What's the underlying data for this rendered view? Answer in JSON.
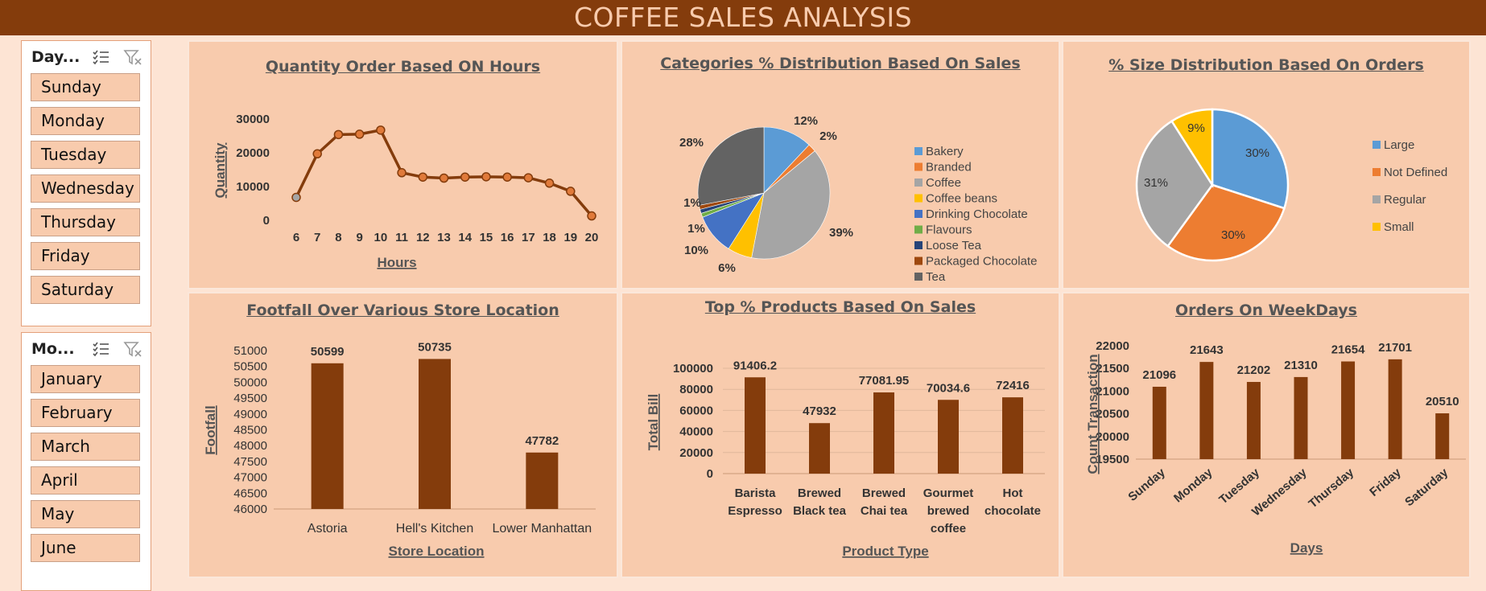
{
  "header": {
    "title": "COFFEE SALES ANALYSIS"
  },
  "slicers": {
    "day": {
      "title": "Day...",
      "items": [
        "Sunday",
        "Monday",
        "Tuesday",
        "Wednesday",
        "Thursday",
        "Friday",
        "Saturday"
      ]
    },
    "month": {
      "title": "Mo...",
      "items": [
        "January",
        "February",
        "March",
        "April",
        "May",
        "June"
      ]
    }
  },
  "chart_data": [
    {
      "type": "line",
      "title": "Quantity Order Based ON Hours",
      "xlabel": "Hours",
      "ylabel": "Quantity",
      "x": [
        6,
        7,
        8,
        9,
        10,
        11,
        12,
        13,
        14,
        15,
        16,
        17,
        18,
        19,
        20
      ],
      "values": [
        6800,
        19700,
        25400,
        25500,
        26700,
        14100,
        12800,
        12500,
        12800,
        12900,
        12800,
        12600,
        11000,
        8600,
        1300
      ],
      "ylim": [
        0,
        30000
      ],
      "yticks": [
        0,
        10000,
        20000,
        30000
      ],
      "color": "#843c0c",
      "marker_color": "#e07a3a"
    },
    {
      "type": "pie",
      "title": "Categories % Distribution Based On Sales",
      "labels": [
        "Bakery",
        "Branded",
        "Coffee",
        "Coffee beans",
        "Drinking Chocolate",
        "Flavours",
        "Loose Tea",
        "Packaged Chocolate",
        "Tea"
      ],
      "values": [
        12,
        2,
        39,
        6,
        10,
        1,
        1,
        1,
        28
      ],
      "value_labels": [
        "12%",
        "2%",
        "39%",
        "6%",
        "10%",
        "1%",
        "",
        "1%",
        "28%"
      ],
      "colors": [
        "#5b9bd5",
        "#ed7d31",
        "#a5a5a5",
        "#ffc000",
        "#4472c4",
        "#70ad47",
        "#264478",
        "#9e480e",
        "#636363"
      ],
      "legend": "right"
    },
    {
      "type": "pie",
      "title": "% Size Distribution Based On Orders",
      "labels": [
        "Large",
        "Not Defined",
        "Regular",
        "Small"
      ],
      "values": [
        30,
        30,
        31,
        9
      ],
      "value_labels": [
        "30%",
        "30%",
        "31%",
        "9%"
      ],
      "colors": [
        "#5b9bd5",
        "#ed7d31",
        "#a5a5a5",
        "#ffc000"
      ],
      "legend": "right"
    },
    {
      "type": "bar",
      "title": "Footfall Over Various Store Location",
      "xlabel": "Store Location",
      "ylabel": "Footfall",
      "categories": [
        "Astoria",
        "Hell's Kitchen",
        "Lower Manhattan"
      ],
      "values": [
        50599,
        50735,
        47782
      ],
      "value_labels": [
        "50599",
        "50735",
        "47782"
      ],
      "ylim": [
        46000,
        51000
      ],
      "yticks": [
        46000,
        46500,
        47000,
        47500,
        48000,
        48500,
        49000,
        49500,
        50000,
        50500,
        51000
      ],
      "color": "#843c0c"
    },
    {
      "type": "bar",
      "title": "Top % Products Based On Sales",
      "xlabel": "Product Type",
      "ylabel": "Total Bill",
      "categories": [
        [
          "Barista",
          "Espresso"
        ],
        [
          "Brewed",
          "Black tea"
        ],
        [
          "Brewed",
          "Chai tea"
        ],
        [
          "Gourmet",
          "brewed",
          "coffee"
        ],
        [
          "Hot",
          "chocolate"
        ]
      ],
      "values": [
        91406.2,
        47932,
        77081.95,
        70034.6,
        72416
      ],
      "value_labels": [
        "91406.2",
        "47932",
        "77081.95",
        "70034.6",
        "72416"
      ],
      "ylim": [
        0,
        100000
      ],
      "yticks": [
        0,
        20000,
        40000,
        60000,
        80000,
        100000
      ],
      "grid": true,
      "color": "#843c0c"
    },
    {
      "type": "bar",
      "title": "Orders On WeekDays",
      "xlabel": "Days",
      "ylabel": "Count Transaction",
      "categories": [
        "Sunday",
        "Monday",
        "Tuesday",
        "Wednesday",
        "Thursday",
        "Friday",
        "Saturday"
      ],
      "values": [
        21096,
        21643,
        21202,
        21310,
        21654,
        21701,
        20510
      ],
      "value_labels": [
        "21096",
        "21643",
        "21202",
        "21310",
        "21654",
        "21701",
        "20510"
      ],
      "ylim": [
        19500,
        22000
      ],
      "yticks": [
        19500,
        20000,
        20500,
        21000,
        21500,
        22000
      ],
      "color": "#843c0c"
    }
  ]
}
